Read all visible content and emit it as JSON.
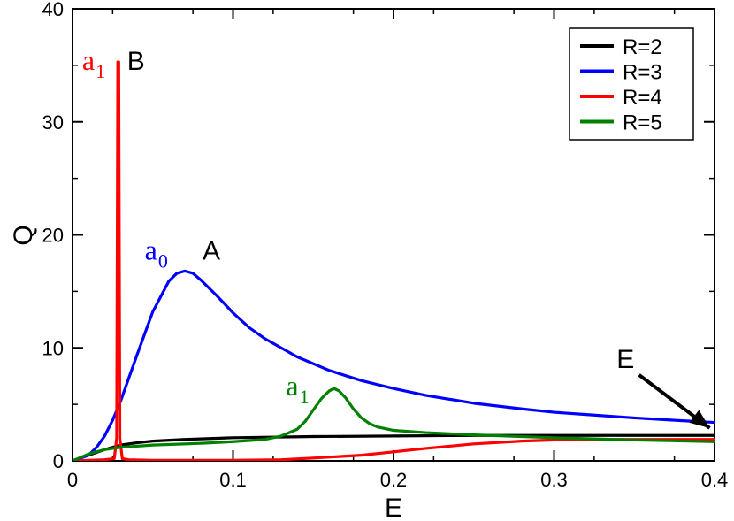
{
  "chart_data": {
    "type": "line",
    "xlabel": "E",
    "ylabel": "Q",
    "xlim": [
      0,
      0.4
    ],
    "ylim": [
      0,
      40
    ],
    "xticks": [
      0,
      0.1,
      0.2,
      0.3,
      0.4
    ],
    "xtick_labels": [
      "0",
      "0.1",
      "0.2",
      "0.3",
      "0.4"
    ],
    "yticks": [
      0,
      10,
      20,
      30,
      40
    ],
    "ytick_labels": [
      "0",
      "10",
      "20",
      "30",
      "40"
    ],
    "grid": false,
    "legend_position": "top-right",
    "series": [
      {
        "name": "R=2",
        "color": "#000000",
        "x": [
          0,
          0.01,
          0.02,
          0.03,
          0.04,
          0.05,
          0.07,
          0.1,
          0.15,
          0.2,
          0.25,
          0.3,
          0.35,
          0.4
        ],
        "y": [
          0,
          0.5,
          1.0,
          1.4,
          1.6,
          1.75,
          1.9,
          2.05,
          2.15,
          2.2,
          2.25,
          2.25,
          2.25,
          2.25
        ]
      },
      {
        "name": "R=3",
        "color": "#0000ff",
        "x": [
          0,
          0.01,
          0.015,
          0.02,
          0.025,
          0.03,
          0.04,
          0.05,
          0.06,
          0.065,
          0.07,
          0.075,
          0.08,
          0.09,
          0.1,
          0.11,
          0.12,
          0.14,
          0.16,
          0.18,
          0.2,
          0.22,
          0.25,
          0.28,
          0.3,
          0.32,
          0.35,
          0.38,
          0.4
        ],
        "y": [
          0,
          0.5,
          1.2,
          2.2,
          3.6,
          5.3,
          9.3,
          13.2,
          15.9,
          16.6,
          16.8,
          16.6,
          16.0,
          14.6,
          13.1,
          11.8,
          10.8,
          9.2,
          8.0,
          7.1,
          6.4,
          5.8,
          5.1,
          4.6,
          4.3,
          4.1,
          3.8,
          3.55,
          3.4
        ]
      },
      {
        "name": "R=4",
        "color": "#ff0000",
        "x": [
          0,
          0.01,
          0.02,
          0.026,
          0.0275,
          0.0282,
          0.0288,
          0.0295,
          0.031,
          0.035,
          0.05,
          0.1,
          0.13,
          0.15,
          0.18,
          0.2,
          0.22,
          0.25,
          0.28,
          0.3,
          0.33,
          0.35,
          0.38,
          0.4
        ],
        "y": [
          0,
          0.05,
          0.1,
          0.2,
          2.0,
          35.3,
          35.3,
          2.0,
          0.2,
          0.1,
          0.05,
          0.05,
          0.1,
          0.25,
          0.5,
          0.8,
          1.1,
          1.5,
          1.75,
          1.85,
          1.9,
          1.9,
          1.9,
          1.9
        ]
      },
      {
        "name": "R=5",
        "color": "#008000",
        "x": [
          0,
          0.01,
          0.02,
          0.03,
          0.05,
          0.08,
          0.1,
          0.12,
          0.13,
          0.14,
          0.145,
          0.15,
          0.155,
          0.16,
          0.163,
          0.166,
          0.17,
          0.175,
          0.18,
          0.185,
          0.19,
          0.2,
          0.22,
          0.25,
          0.3,
          0.35,
          0.4
        ],
        "y": [
          0,
          0.6,
          1.0,
          1.2,
          1.4,
          1.55,
          1.7,
          1.9,
          2.2,
          2.8,
          3.5,
          4.5,
          5.5,
          6.2,
          6.4,
          6.2,
          5.6,
          4.6,
          3.8,
          3.3,
          3.0,
          2.7,
          2.5,
          2.3,
          2.05,
          1.85,
          1.7
        ]
      }
    ],
    "annotations": [
      {
        "text": "A",
        "x": 0.081,
        "y": 17.8,
        "color": "#000000",
        "style": "sans"
      },
      {
        "text": "a",
        "sub": "0",
        "x": 0.045,
        "y": 17.8,
        "color": "#0000ff",
        "style": "serif"
      },
      {
        "text": "B",
        "x": 0.034,
        "y": 34.6,
        "color": "#000000",
        "style": "sans"
      },
      {
        "text": "a",
        "sub": "1",
        "x": 0.006,
        "y": 34.6,
        "color": "#ff0000",
        "style": "serif"
      },
      {
        "text": "a",
        "sub": "1",
        "x": 0.133,
        "y": 5.8,
        "color": "#008000",
        "style": "serif"
      },
      {
        "text": "E",
        "x": 0.339,
        "y": 8.2,
        "color": "#000000",
        "style": "sans"
      }
    ],
    "arrow": {
      "from": [
        0.353,
        7.6
      ],
      "to": [
        0.397,
        2.9
      ],
      "color": "#000000"
    }
  }
}
